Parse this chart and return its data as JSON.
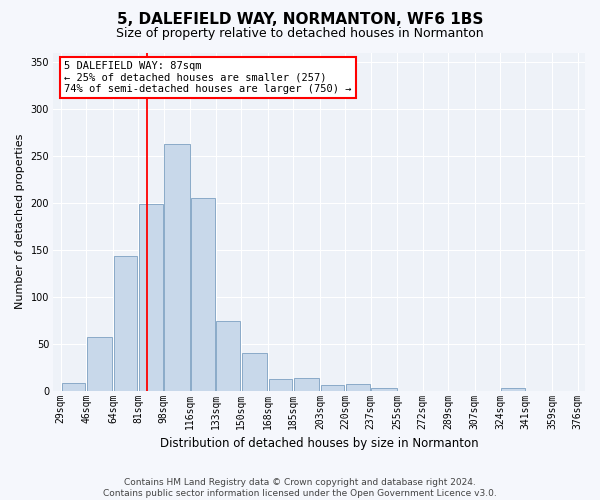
{
  "title": "5, DALEFIELD WAY, NORMANTON, WF6 1BS",
  "subtitle": "Size of property relative to detached houses in Normanton",
  "xlabel": "Distribution of detached houses by size in Normanton",
  "ylabel": "Number of detached properties",
  "bar_color": "#c8d8ea",
  "bar_edge_color": "#8aaac8",
  "background_color": "#eef2f8",
  "grid_color": "#ffffff",
  "fig_background": "#f5f7fc",
  "bins": [
    29,
    46,
    64,
    81,
    98,
    116,
    133,
    150,
    168,
    185,
    203,
    220,
    237,
    255,
    272,
    289,
    307,
    324,
    341,
    359,
    376
  ],
  "bin_labels": [
    "29sqm",
    "46sqm",
    "64sqm",
    "81sqm",
    "98sqm",
    "116sqm",
    "133sqm",
    "150sqm",
    "168sqm",
    "185sqm",
    "203sqm",
    "220sqm",
    "237sqm",
    "255sqm",
    "272sqm",
    "289sqm",
    "307sqm",
    "324sqm",
    "341sqm",
    "359sqm",
    "376sqm"
  ],
  "values": [
    8,
    57,
    143,
    199,
    263,
    205,
    74,
    40,
    12,
    13,
    6,
    7,
    3,
    0,
    0,
    0,
    0,
    3,
    0,
    0
  ],
  "ylim": [
    0,
    360
  ],
  "yticks": [
    0,
    50,
    100,
    150,
    200,
    250,
    300,
    350
  ],
  "annotation_text_line1": "5 DALEFIELD WAY: 87sqm",
  "annotation_text_line2": "← 25% of detached houses are smaller (257)",
  "annotation_text_line3": "74% of semi-detached houses are larger (750) →",
  "red_line_x": 87,
  "footer_line1": "Contains HM Land Registry data © Crown copyright and database right 2024.",
  "footer_line2": "Contains public sector information licensed under the Open Government Licence v3.0.",
  "title_fontsize": 11,
  "subtitle_fontsize": 9,
  "ylabel_fontsize": 8,
  "xlabel_fontsize": 8.5,
  "tick_fontsize": 7,
  "ann_fontsize": 7.5,
  "footer_fontsize": 6.5
}
